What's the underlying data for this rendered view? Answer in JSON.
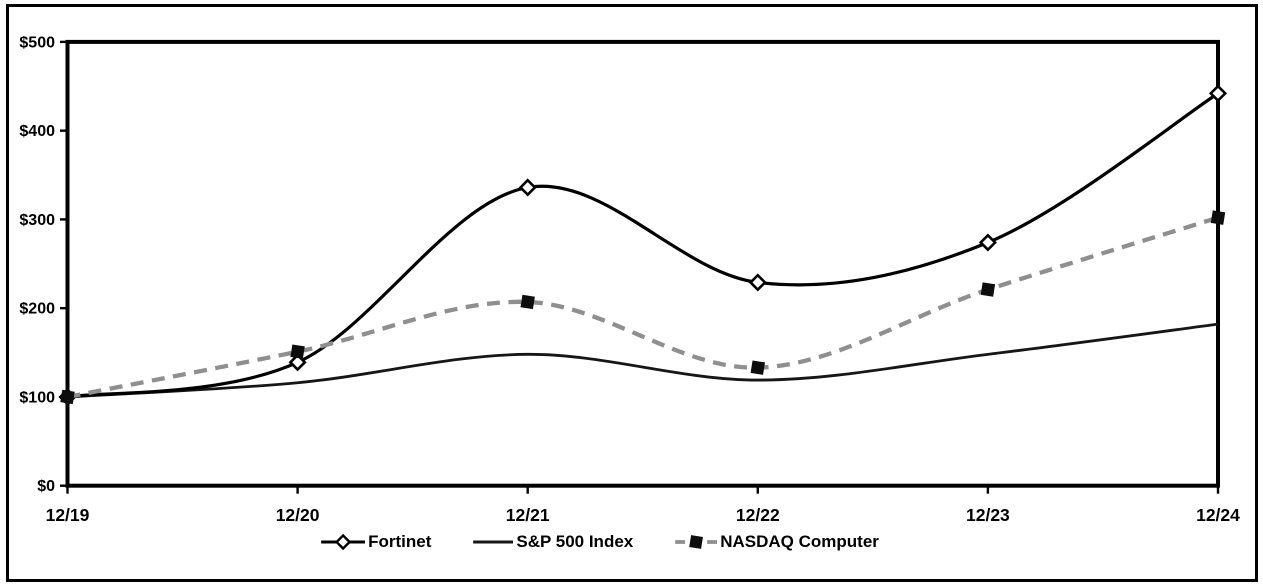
{
  "chart_data": {
    "type": "line",
    "title": "",
    "categories": [
      "12/19",
      "12/20",
      "12/21",
      "12/22",
      "12/23",
      "12/24"
    ],
    "series": [
      {
        "name": "Fortinet",
        "values": [
          100,
          139,
          336,
          229,
          274,
          442
        ],
        "color": "#000000",
        "line_style": "solid",
        "line_width": 3.2,
        "marker": "open-diamond",
        "marker_fill": "#ffffff",
        "marker_border": "#000000"
      },
      {
        "name": "S&P 500 Index",
        "values": [
          100,
          116,
          148,
          119,
          148,
          182
        ],
        "color": "#161616",
        "line_style": "solid",
        "line_width": 2.8,
        "marker": "none"
      },
      {
        "name": "NASDAQ Computer",
        "values": [
          100,
          151,
          207,
          133,
          221,
          302
        ],
        "color": "#8f8f8f",
        "line_style": "dashed",
        "line_width": 4.3,
        "marker": "filled-square",
        "marker_fill": "#0d0d0d"
      }
    ],
    "xlabel": "",
    "ylabel": "",
    "ylim": [
      0,
      500
    ],
    "ytick_step": 100,
    "ytick_labels": [
      "$0",
      "$100",
      "$200",
      "$300",
      "$400",
      "$500"
    ],
    "grid": false,
    "smooth_lines": true,
    "legend_position": "bottom-center",
    "axis_color": "#000000",
    "background": "#ffffff"
  }
}
